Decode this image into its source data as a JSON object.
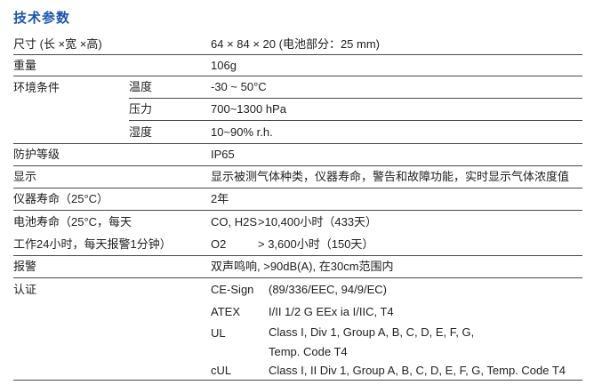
{
  "title": "技术参数",
  "accent_color": "#1a55ad",
  "rows": {
    "size": {
      "label": "尺寸 (长 ×宽 ×高)",
      "value": "64 × 84 × 20 (电池部分：25 mm)"
    },
    "weight": {
      "label": "重量",
      "value": "106g"
    },
    "environment": {
      "label": "环境条件",
      "subrows": [
        {
          "label": "温度",
          "value": "-30 ~ 50°C"
        },
        {
          "label": "压力",
          "value": "700~1300 hPa"
        },
        {
          "label": "湿度",
          "value": "10~90% r.h."
        }
      ]
    },
    "protection": {
      "label": "防护等级",
      "value": "IP65"
    },
    "display": {
      "label": "显示",
      "value": "显示被测气体种类，仪器寿命，警告和故障功能，实时显示气体浓度值"
    },
    "instrument_life": {
      "label": "仪器寿命（25°C）",
      "value": "2年"
    },
    "battery_life": {
      "label_line1": "电池寿命（25°C，每天",
      "label_line2": "工作24小时，每天报警1分钟）",
      "subrows": [
        {
          "label": "CO, H2S",
          "value": ">10,400小时（433天）"
        },
        {
          "label": "O2",
          "value": "> 3,600小时（150天）"
        }
      ]
    },
    "alarm": {
      "label": "报警",
      "value": "双声鸣响, >90dB(A), 在30cm范围内"
    },
    "certification": {
      "label": "认证",
      "subrows": [
        {
          "label": "CE-Sign",
          "value": "(89/336/EEC, 94/9/EC)"
        },
        {
          "label": "ATEX",
          "value": "I/II 1/2 G EEx ia I/IIC, T4"
        },
        {
          "label": "UL",
          "value_line1": "Class I, Div 1, Group A, B, C, D, E, F, G,",
          "value_line2": "Temp. Code T4"
        },
        {
          "label": "cUL",
          "value": "Class I, II Div 1, Group A, B, C, D, E, F, G, Temp. Code T4"
        }
      ]
    }
  }
}
